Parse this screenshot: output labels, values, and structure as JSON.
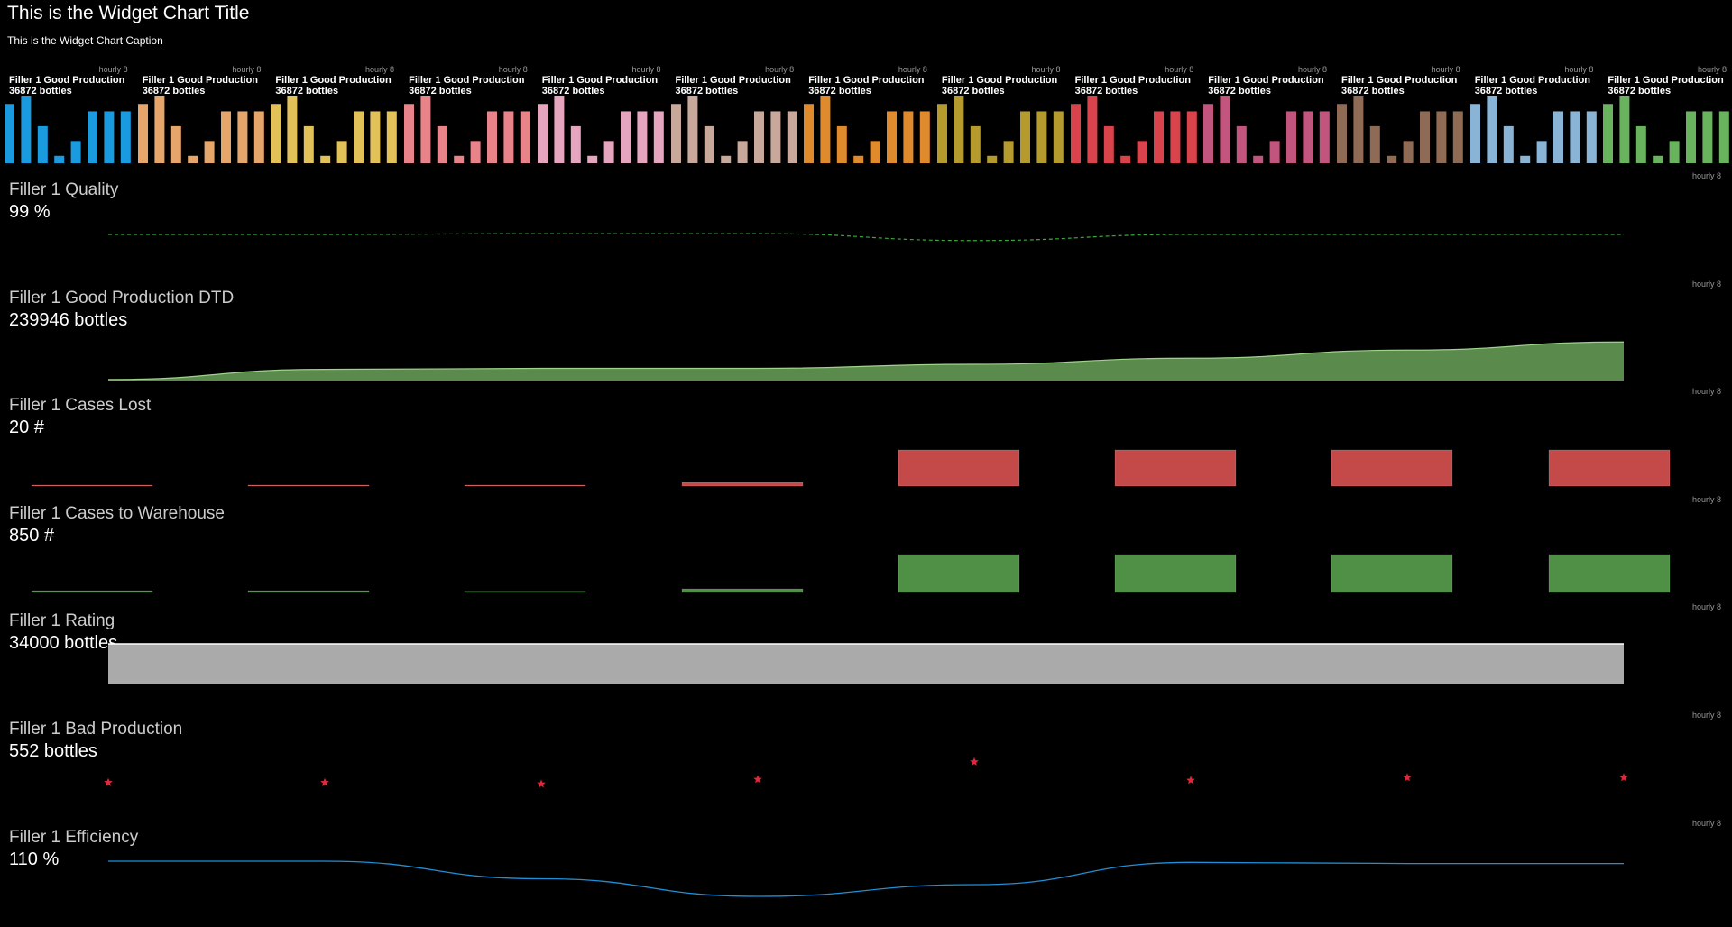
{
  "header": {
    "title": "This is the Widget Chart Title",
    "caption": "This is the Widget Chart Caption"
  },
  "chart_data": [
    {
      "type": "bar",
      "group": "mini_bars",
      "panels": [
        {
          "label": "Filler 1 Good Production",
          "value": "36872 bottles",
          "interval": "hourly 8",
          "color": "#1a9be0",
          "values": [
            8,
            9,
            5,
            1,
            3,
            7,
            7,
            7
          ]
        },
        {
          "label": "Filler 1 Good Production",
          "value": "36872 bottles",
          "interval": "hourly 8",
          "color": "#e5a56b",
          "values": [
            8,
            9,
            5,
            1,
            3,
            7,
            7,
            7
          ]
        },
        {
          "label": "Filler 1 Good Production",
          "value": "36872 bottles",
          "interval": "hourly 8",
          "color": "#e3c159",
          "values": [
            8,
            9,
            5,
            1,
            3,
            7,
            7,
            7
          ]
        },
        {
          "label": "Filler 1 Good Production",
          "value": "36872 bottles",
          "interval": "hourly 8",
          "color": "#e8838a",
          "values": [
            8,
            9,
            5,
            1,
            3,
            7,
            7,
            7
          ]
        },
        {
          "label": "Filler 1 Good Production",
          "value": "36872 bottles",
          "interval": "hourly 8",
          "color": "#e6a5bf",
          "values": [
            8,
            9,
            5,
            1,
            3,
            7,
            7,
            7
          ]
        },
        {
          "label": "Filler 1 Good Production",
          "value": "36872 bottles",
          "interval": "hourly 8",
          "color": "#c8a89a",
          "values": [
            8,
            9,
            5,
            1,
            3,
            7,
            7,
            7
          ]
        },
        {
          "label": "Filler 1 Good Production",
          "value": "36872 bottles",
          "interval": "hourly 8",
          "color": "#e08a2e",
          "values": [
            8,
            9,
            5,
            1,
            3,
            7,
            7,
            7
          ]
        },
        {
          "label": "Filler 1 Good Production",
          "value": "36872 bottles",
          "interval": "hourly 8",
          "color": "#b59a2e",
          "values": [
            8,
            9,
            5,
            1,
            3,
            7,
            7,
            7
          ]
        },
        {
          "label": "Filler 1 Good Production",
          "value": "36872 bottles",
          "interval": "hourly 8",
          "color": "#d9434b",
          "values": [
            8,
            9,
            5,
            1,
            3,
            7,
            7,
            7
          ]
        },
        {
          "label": "Filler 1 Good Production",
          "value": "36872 bottles",
          "interval": "hourly 8",
          "color": "#c2557d",
          "values": [
            8,
            9,
            5,
            1,
            3,
            7,
            7,
            7
          ]
        },
        {
          "label": "Filler 1 Good Production",
          "value": "36872 bottles",
          "interval": "hourly 8",
          "color": "#8f6a55",
          "values": [
            8,
            9,
            5,
            1,
            3,
            7,
            7,
            7
          ]
        },
        {
          "label": "Filler 1 Good Production",
          "value": "36872 bottles",
          "interval": "hourly 8",
          "color": "#8ab4d6",
          "values": [
            8,
            9,
            5,
            1,
            3,
            7,
            7,
            7
          ]
        },
        {
          "label": "Filler 1 Good Production",
          "value": "36872 bottles",
          "interval": "hourly 8",
          "color": "#6ab35e",
          "values": [
            8,
            9,
            5,
            1,
            3,
            7,
            7,
            7
          ]
        }
      ]
    },
    {
      "type": "line",
      "key": "quality",
      "label": "Filler 1 Quality",
      "value": "99 %",
      "interval": "hourly 8",
      "color": "#3aa83a",
      "style": "dashed",
      "values": [
        99,
        99,
        99.2,
        99.2,
        97.5,
        99,
        99,
        99
      ]
    },
    {
      "type": "area",
      "key": "good_dtd",
      "label": "Filler 1 Good Production DTD",
      "value": "239946 bottles",
      "interval": "hourly 8",
      "color": "#5a8a4c",
      "line_color": "#9fd38a",
      "values": [
        5000,
        55000,
        60000,
        60000,
        80000,
        110000,
        150000,
        190000
      ]
    },
    {
      "type": "bar",
      "key": "cases_lost",
      "label": "Filler 1 Cases Lost",
      "value": "20 #",
      "interval": "hourly 8",
      "color": "#c44a4a",
      "values": [
        0.2,
        0.2,
        0.2,
        2,
        20,
        20,
        20,
        20
      ]
    },
    {
      "type": "bar",
      "key": "cases_warehouse",
      "label": "Filler 1 Cases to Warehouse",
      "value": "850 #",
      "interval": "hourly 8",
      "color": "#4f8f46",
      "values": [
        40,
        40,
        25,
        80,
        850,
        850,
        850,
        850
      ]
    },
    {
      "type": "area",
      "key": "rating",
      "label": "Filler 1 Rating",
      "value": "34000 bottles",
      "interval": "hourly 8",
      "color": "#aaaaaa",
      "line_color": "#ffffff",
      "values": [
        34000,
        34000,
        34000,
        34000,
        34000,
        34000,
        34000,
        34000
      ]
    },
    {
      "type": "scatter",
      "key": "bad_production",
      "label": "Filler 1 Bad Production",
      "value": "552 bottles",
      "interval": "hourly 8",
      "color": "#e0283c",
      "marker": "star",
      "values": [
        65,
        65,
        62,
        72,
        110,
        70,
        76,
        76
      ]
    },
    {
      "type": "line",
      "key": "efficiency",
      "label": "Filler 1 Efficiency",
      "value": "110 %",
      "interval": "hourly 8",
      "color": "#1f8fd6",
      "values": [
        110,
        110,
        80,
        50,
        70,
        108,
        106,
        106
      ]
    }
  ]
}
